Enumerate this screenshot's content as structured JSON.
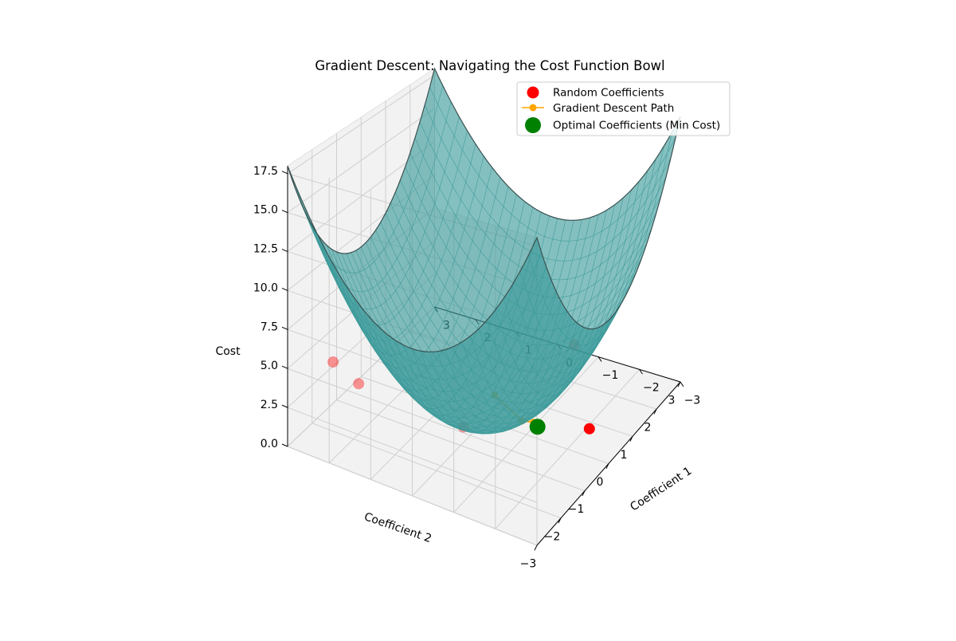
{
  "chart_data": {
    "type": "surface3d",
    "title": "Gradient Descent: Navigating the Cost Function Bowl",
    "axes": {
      "x": {
        "label": "Coefficient 1",
        "range": [
          -3,
          3
        ],
        "ticks": [
          -3,
          -2,
          -1,
          0,
          1,
          2,
          3
        ]
      },
      "y": {
        "label": "Coefficient 2",
        "range": [
          -3,
          3
        ],
        "ticks": [
          -3,
          -2,
          -1,
          0,
          1,
          2,
          3
        ]
      },
      "z": {
        "label": "Cost",
        "range": [
          0,
          18
        ],
        "ticks": [
          0.0,
          2.5,
          5.0,
          7.5,
          10.0,
          12.5,
          15.0,
          17.5
        ]
      }
    },
    "tick_labels": {
      "x": [
        "−3",
        "−2",
        "−1",
        "0",
        "1",
        "2",
        "3"
      ],
      "y": [
        "−3",
        "−2",
        "−1",
        "0",
        "1",
        "2",
        "3"
      ],
      "z": [
        "0.0",
        "2.5",
        "5.0",
        "7.5",
        "10.0",
        "12.5",
        "15.0",
        "17.5"
      ]
    },
    "grid": true,
    "legend_position": "top-right",
    "surface": {
      "function": "x^2 + y^2",
      "color": "#3a9999"
    },
    "series": [
      {
        "name": "Random Coefficients",
        "kind": "scatter",
        "color": "#ff0000",
        "points": [
          {
            "x": 0.4,
            "y": -2.3,
            "z": 0.9
          },
          {
            "x": 2.0,
            "y": -1.0,
            "z": 2.6
          },
          {
            "x": -1.4,
            "y": -0.3,
            "z": 2.1
          },
          {
            "x": -2.3,
            "y": 1.7,
            "z": 4.3
          },
          {
            "x": -2.5,
            "y": 2.2,
            "z": 5.5
          }
        ]
      },
      {
        "name": "Gradient Descent Path",
        "kind": "line",
        "color": "#ffa500",
        "points": [
          {
            "x": -2.0,
            "y": -1.4,
            "z": 6.0
          },
          {
            "x": 0.0,
            "y": -0.9,
            "z": 0.8
          },
          {
            "x": 0.3,
            "y": -1.0,
            "z": 0.3
          }
        ]
      },
      {
        "name": "Optimal Coefficients (Min Cost)",
        "kind": "scatter",
        "color": "#008000",
        "points": [
          {
            "x": 0.3,
            "y": -1.1,
            "z": 0.1
          }
        ]
      }
    ]
  }
}
